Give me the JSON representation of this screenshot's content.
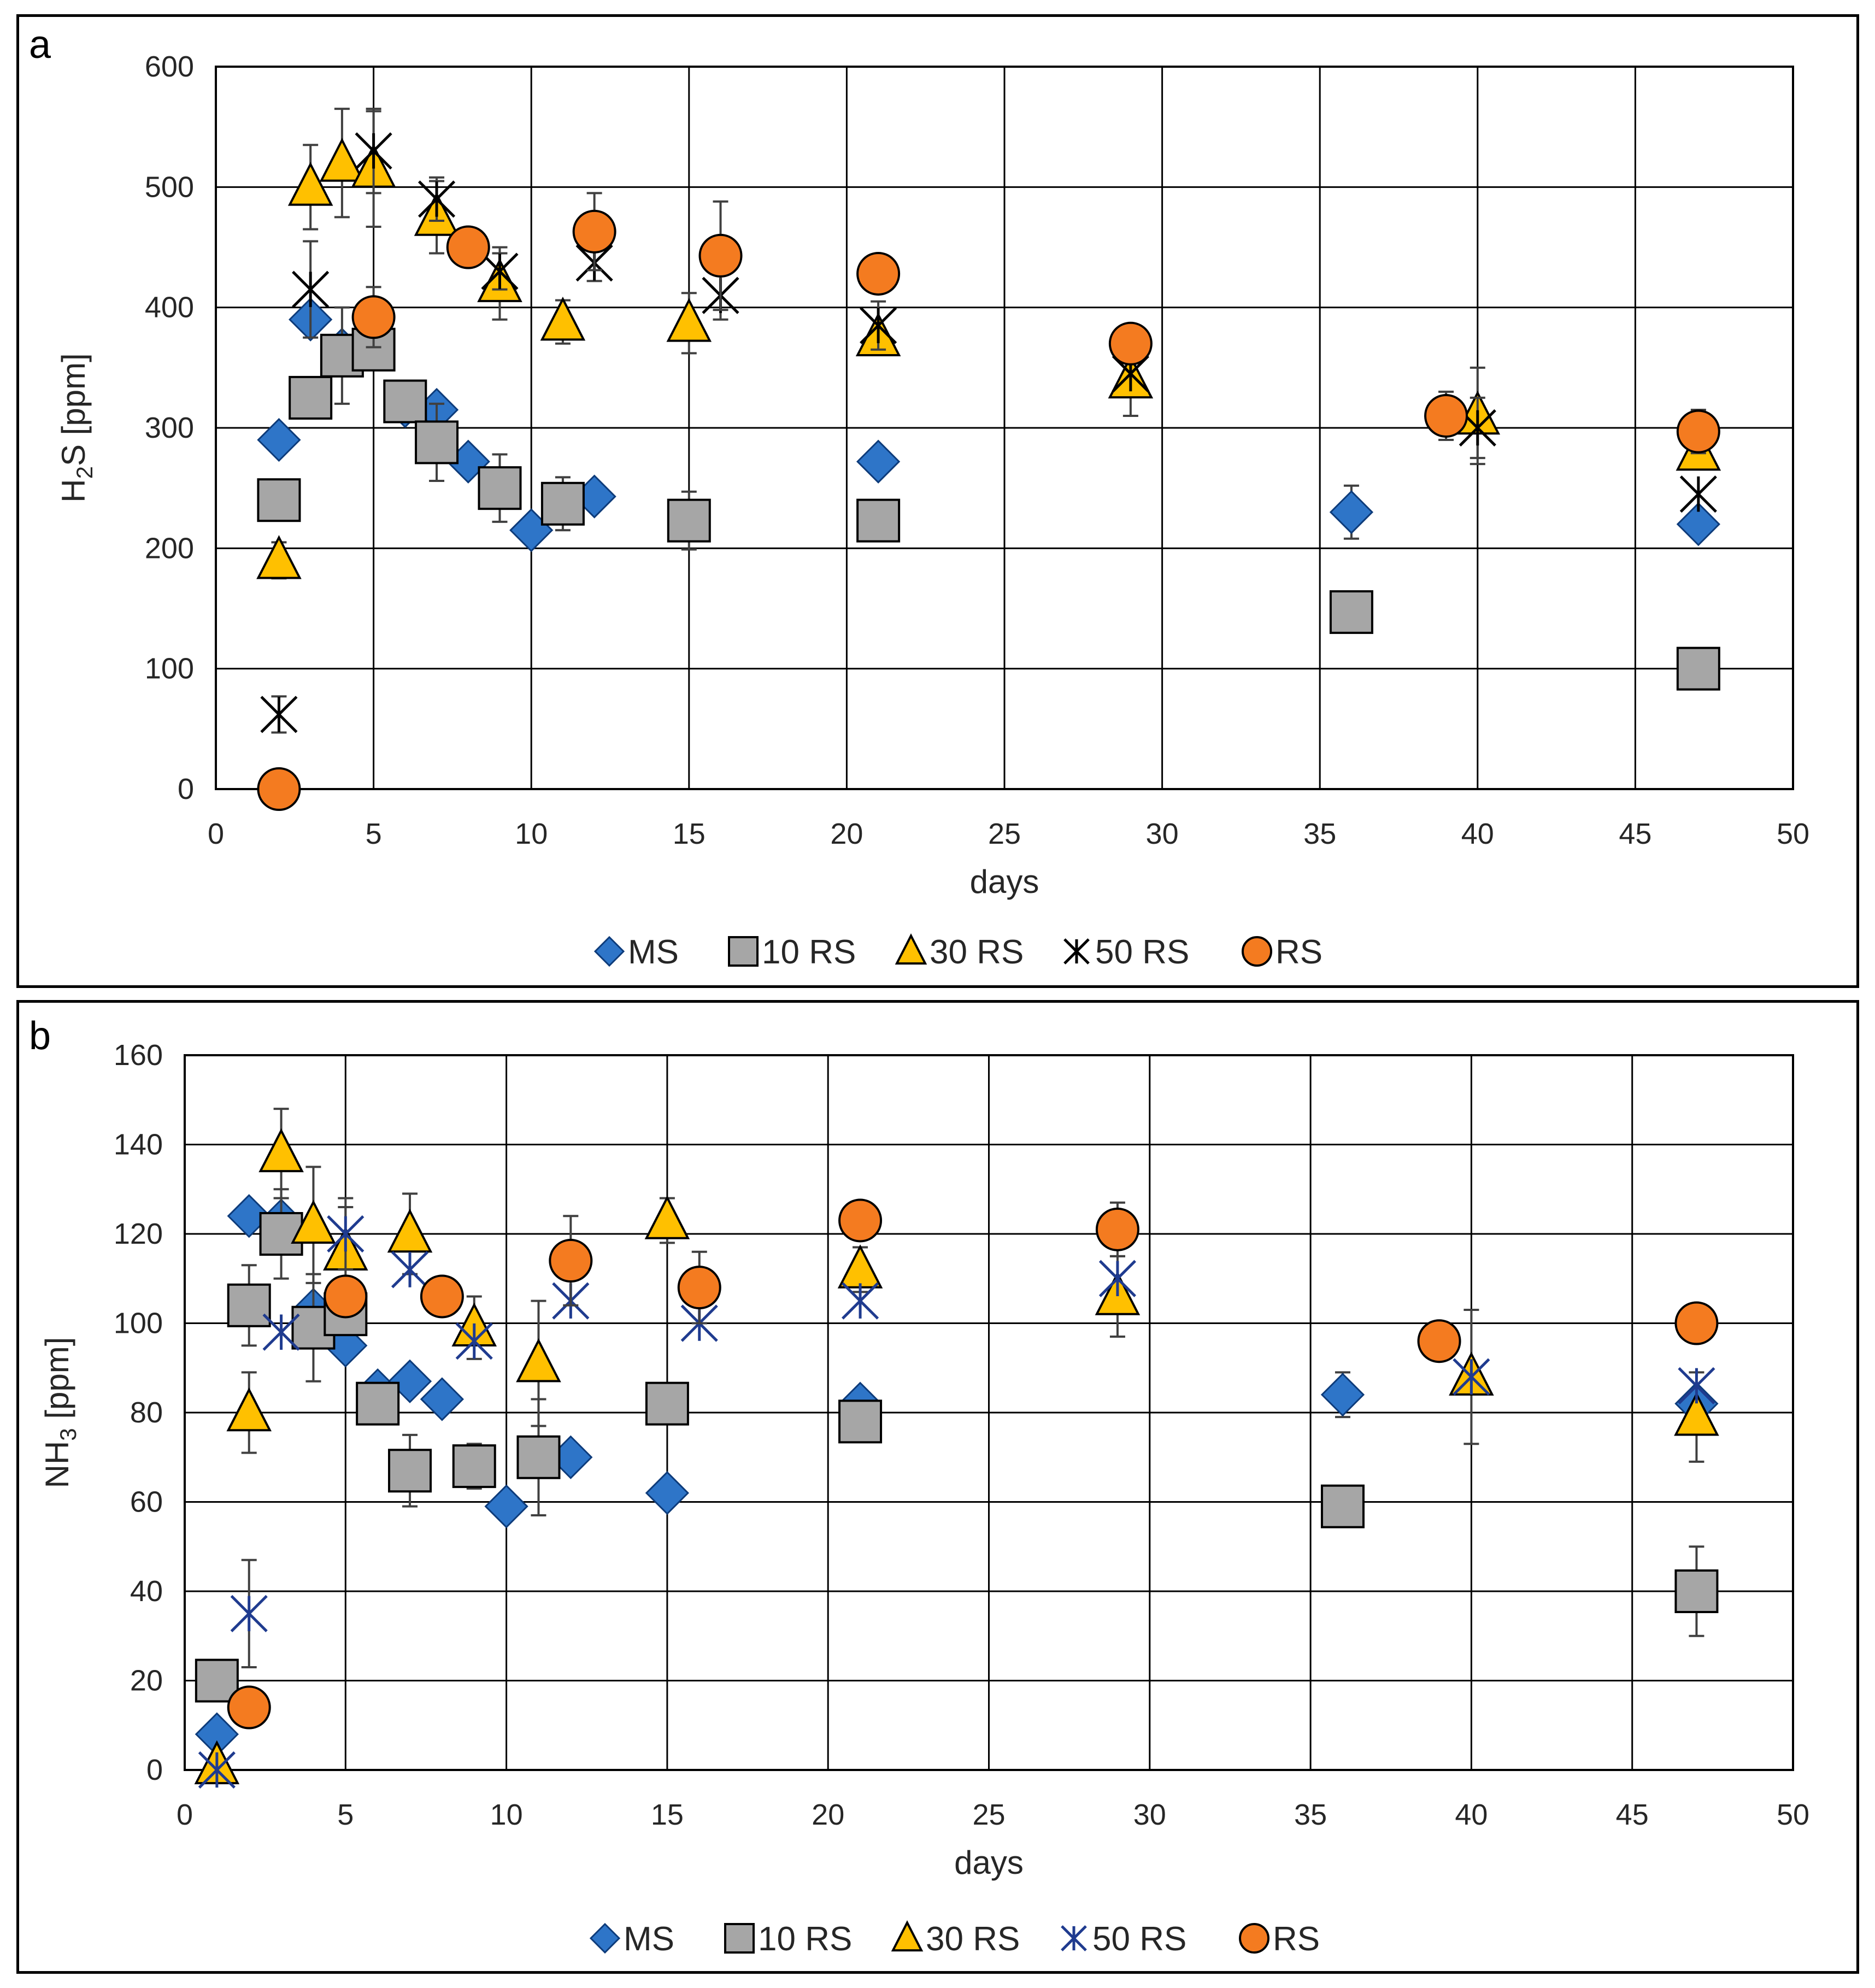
{
  "chart_data": [
    {
      "panel": "a",
      "type": "scatter",
      "xlabel": "days",
      "ylabel": "H₂S [ppm]",
      "ylabel_main": "H",
      "ylabel_sub": "2",
      "ylabel_rest": "S [ppm]",
      "xlim": [
        0,
        50
      ],
      "ylim": [
        0,
        600
      ],
      "xticks": [
        0,
        5,
        10,
        15,
        20,
        25,
        30,
        35,
        40,
        45,
        50
      ],
      "yticks": [
        0,
        100,
        200,
        300,
        400,
        500,
        600
      ],
      "grid": true,
      "legend_position": "bottom",
      "series": [
        {
          "name": "MS",
          "marker": "diamond",
          "color": "#2e75c8",
          "points": [
            [
              2,
              290
            ],
            [
              3,
              390
            ],
            [
              4,
              365
            ],
            [
              6,
              318
            ],
            [
              7,
              315
            ],
            [
              8,
              272
            ],
            [
              10,
              215
            ],
            [
              12,
              243
            ],
            [
              21,
              272
            ],
            [
              36,
              230
            ],
            [
              47,
              220
            ]
          ],
          "errors": [
            0,
            0,
            0,
            0,
            0,
            0,
            0,
            0,
            0,
            22,
            0
          ]
        },
        {
          "name": "10 RS",
          "marker": "square",
          "color": "#a6a6a6",
          "points": [
            [
              2,
              240
            ],
            [
              3,
              325
            ],
            [
              4,
              360
            ],
            [
              5,
              365
            ],
            [
              6,
              322
            ],
            [
              7,
              288
            ],
            [
              9,
              250
            ],
            [
              11,
              237
            ],
            [
              15,
              223
            ],
            [
              21,
              223
            ],
            [
              36,
              147
            ],
            [
              47,
              100
            ]
          ],
          "errors": [
            0,
            0,
            40,
            0,
            0,
            32,
            28,
            22,
            24,
            0,
            0,
            0
          ]
        },
        {
          "name": "30 RS",
          "marker": "triangle",
          "color": "#ffc000",
          "points": [
            [
              2,
              190
            ],
            [
              3,
              500
            ],
            [
              4,
              520
            ],
            [
              5,
              515
            ],
            [
              7,
              475
            ],
            [
              9,
              420
            ],
            [
              11,
              388
            ],
            [
              15,
              387
            ],
            [
              21,
              375
            ],
            [
              29,
              340
            ],
            [
              40,
              310
            ],
            [
              47,
              280
            ]
          ],
          "errors": [
            15,
            35,
            45,
            48,
            30,
            30,
            18,
            25,
            0,
            30,
            40,
            0
          ]
        },
        {
          "name": "50 RS",
          "marker": "asterisk",
          "color": "#000000",
          "points": [
            [
              2,
              62
            ],
            [
              3,
              415
            ],
            [
              5,
              530
            ],
            [
              7,
              490
            ],
            [
              9,
              430
            ],
            [
              12,
              437
            ],
            [
              16,
              410
            ],
            [
              21,
              385
            ],
            [
              29,
              345
            ],
            [
              40,
              300
            ],
            [
              47,
              245
            ]
          ],
          "errors": [
            15,
            40,
            35,
            18,
            15,
            15,
            20,
            20,
            0,
            25,
            0
          ]
        },
        {
          "name": "RS",
          "marker": "circle",
          "color": "#f47b20",
          "points": [
            [
              2,
              0
            ],
            [
              5,
              392
            ],
            [
              8,
              450
            ],
            [
              12,
              463
            ],
            [
              16,
              443
            ],
            [
              21,
              428
            ],
            [
              29,
              370
            ],
            [
              39,
              310
            ],
            [
              47,
              297
            ]
          ],
          "errors": [
            0,
            25,
            0,
            32,
            45,
            0,
            0,
            20,
            18
          ]
        }
      ]
    },
    {
      "panel": "b",
      "type": "scatter",
      "xlabel": "days",
      "ylabel": "NH₃ [ppm]",
      "ylabel_main": "NH",
      "ylabel_sub": "3",
      "ylabel_rest": " [ppm]",
      "xlim": [
        0,
        50
      ],
      "ylim": [
        0,
        160
      ],
      "xticks": [
        0,
        5,
        10,
        15,
        20,
        25,
        30,
        35,
        40,
        45,
        50
      ],
      "yticks": [
        0,
        20,
        40,
        60,
        80,
        100,
        120,
        140,
        160
      ],
      "grid": true,
      "legend_position": "bottom",
      "series": [
        {
          "name": "MS",
          "marker": "diamond",
          "color": "#2e75c8",
          "points": [
            [
              1,
              8
            ],
            [
              2,
              124
            ],
            [
              3,
              123
            ],
            [
              4,
              103
            ],
            [
              5,
              95
            ],
            [
              6,
              85
            ],
            [
              7,
              87
            ],
            [
              8,
              83
            ],
            [
              10,
              59
            ],
            [
              12,
              70
            ],
            [
              15,
              62
            ],
            [
              21,
              82
            ],
            [
              36,
              84
            ],
            [
              47,
              82
            ]
          ],
          "errors": [
            0,
            0,
            0,
            0,
            0,
            0,
            0,
            0,
            0,
            0,
            0,
            0,
            5,
            0
          ]
        },
        {
          "name": "10 RS",
          "marker": "square",
          "color": "#a6a6a6",
          "points": [
            [
              1,
              20
            ],
            [
              2,
              104
            ],
            [
              3,
              120
            ],
            [
              4,
              99
            ],
            [
              5,
              102
            ],
            [
              6,
              82
            ],
            [
              7,
              67
            ],
            [
              9,
              68
            ],
            [
              11,
              70
            ],
            [
              15,
              82
            ],
            [
              21,
              78
            ],
            [
              36,
              59
            ],
            [
              47,
              40
            ]
          ],
          "errors": [
            0,
            9,
            10,
            12,
            0,
            0,
            8,
            5,
            13,
            0,
            0,
            0,
            10
          ]
        },
        {
          "name": "30 RS",
          "marker": "triangle",
          "color": "#ffc000",
          "points": [
            [
              1,
              1
            ],
            [
              2,
              80
            ],
            [
              3,
              138
            ],
            [
              4,
              122
            ],
            [
              5,
              116
            ],
            [
              7,
              120
            ],
            [
              9,
              99
            ],
            [
              11,
              91
            ],
            [
              15,
              123
            ],
            [
              21,
              112
            ],
            [
              29,
              106
            ],
            [
              40,
              88
            ],
            [
              47,
              79
            ]
          ],
          "errors": [
            0,
            9,
            10,
            13,
            10,
            9,
            7,
            14,
            5,
            5,
            9,
            15,
            10
          ]
        },
        {
          "name": "50 RS",
          "marker": "asterisk",
          "color": "#1f3b8f",
          "points": [
            [
              1,
              0
            ],
            [
              2,
              35
            ],
            [
              3,
              98
            ],
            [
              5,
              120
            ],
            [
              7,
              112
            ],
            [
              9,
              96
            ],
            [
              12,
              105
            ],
            [
              16,
              100
            ],
            [
              21,
              105
            ],
            [
              29,
              110
            ],
            [
              40,
              88
            ],
            [
              47,
              86
            ]
          ],
          "errors": [
            0,
            12,
            0,
            8,
            0,
            0,
            0,
            0,
            0,
            0,
            0,
            0
          ]
        },
        {
          "name": "RS",
          "marker": "circle",
          "color": "#f47b20",
          "points": [
            [
              2,
              14
            ],
            [
              5,
              106
            ],
            [
              8,
              106
            ],
            [
              12,
              114
            ],
            [
              16,
              108
            ],
            [
              21,
              123
            ],
            [
              29,
              121
            ],
            [
              39,
              96
            ],
            [
              47,
              100
            ]
          ],
          "errors": [
            3,
            0,
            0,
            10,
            8,
            0,
            6,
            0,
            4
          ]
        }
      ]
    }
  ],
  "panels": {
    "a": {
      "letter": "a"
    },
    "b": {
      "letter": "b"
    }
  }
}
